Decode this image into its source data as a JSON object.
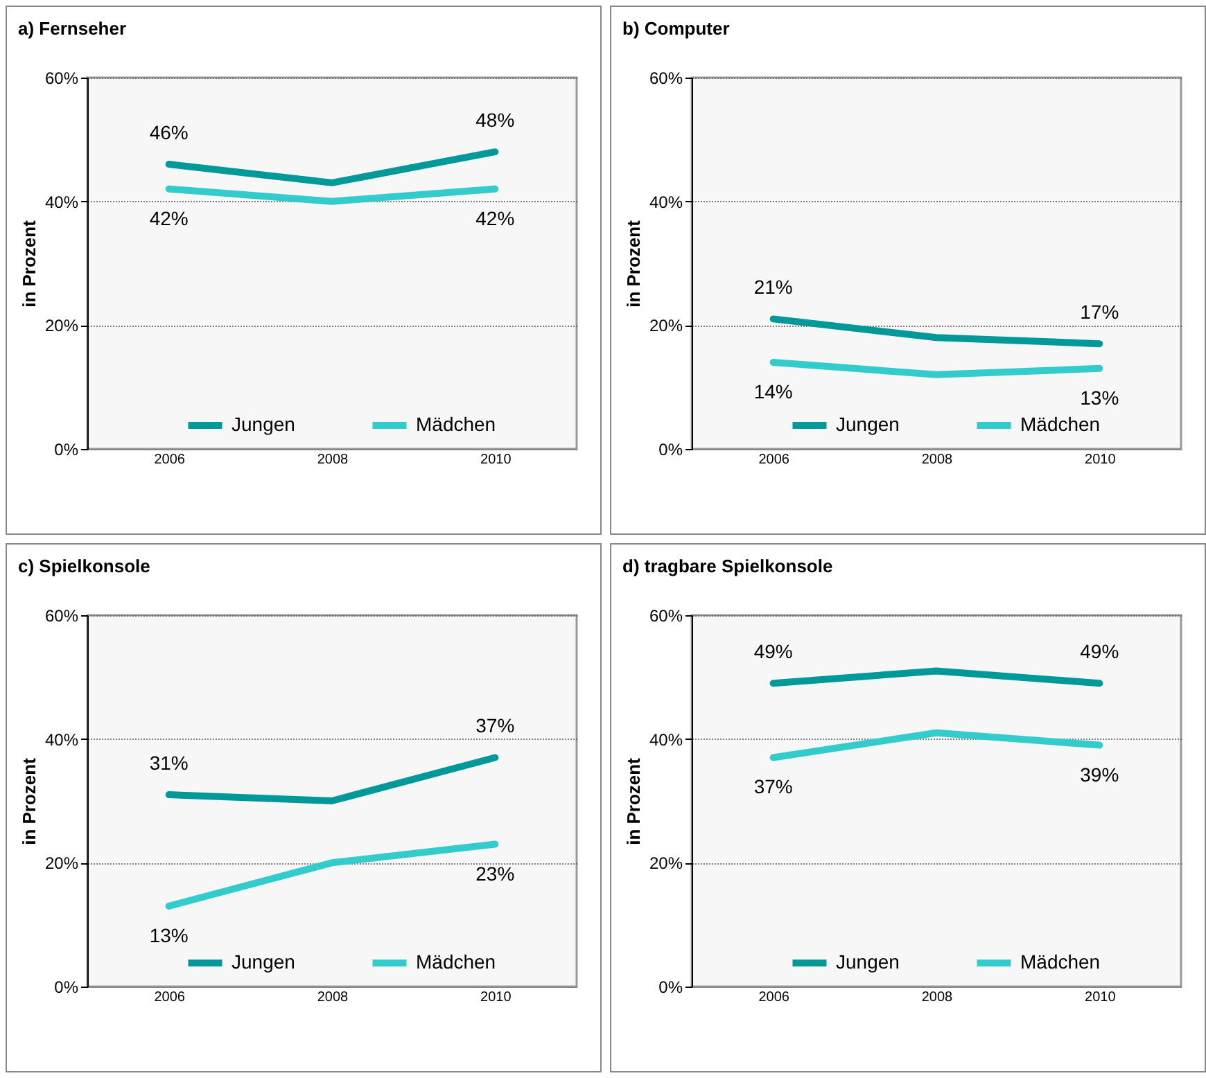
{
  "chart_data": [
    {
      "type": "line",
      "title": "a) Fernseher",
      "ylabel": "in Prozent",
      "categories": [
        "2006",
        "2008",
        "2010"
      ],
      "series": [
        {
          "name": "Jungen",
          "color": "#009999",
          "values": [
            46,
            43,
            48
          ],
          "value_labels": [
            "46%",
            null,
            "48%"
          ]
        },
        {
          "name": "Mädchen",
          "color": "#33cccc",
          "values": [
            42,
            40,
            42
          ],
          "value_labels": [
            "42%",
            null,
            "42%"
          ]
        }
      ],
      "ylim": [
        0,
        60
      ],
      "yticks": [
        {
          "value": 0,
          "label": "0%"
        },
        {
          "value": 20,
          "label": "20%"
        },
        {
          "value": 40,
          "label": "40%"
        },
        {
          "value": 60,
          "label": "60%"
        }
      ],
      "grid": "y",
      "legend": "bottom"
    },
    {
      "type": "line",
      "title": "b) Computer",
      "ylabel": "in Prozent",
      "categories": [
        "2006",
        "2008",
        "2010"
      ],
      "series": [
        {
          "name": "Jungen",
          "color": "#009999",
          "values": [
            21,
            18,
            17
          ],
          "value_labels": [
            "21%",
            null,
            "17%"
          ]
        },
        {
          "name": "Mädchen",
          "color": "#33cccc",
          "values": [
            14,
            12,
            13
          ],
          "value_labels": [
            "14%",
            null,
            "13%"
          ]
        }
      ],
      "ylim": [
        0,
        60
      ],
      "yticks": [
        {
          "value": 0,
          "label": "0%"
        },
        {
          "value": 20,
          "label": "20%"
        },
        {
          "value": 40,
          "label": "40%"
        },
        {
          "value": 60,
          "label": "60%"
        }
      ],
      "grid": "y",
      "legend": "bottom"
    },
    {
      "type": "line",
      "title": "c) Spielkonsole",
      "ylabel": "in Prozent",
      "categories": [
        "2006",
        "2008",
        "2010"
      ],
      "series": [
        {
          "name": "Jungen",
          "color": "#009999",
          "values": [
            31,
            30,
            37
          ],
          "value_labels": [
            "31%",
            null,
            "37%"
          ]
        },
        {
          "name": "Mädchen",
          "color": "#33cccc",
          "values": [
            13,
            20,
            23
          ],
          "value_labels": [
            "13%",
            null,
            "23%"
          ]
        }
      ],
      "ylim": [
        0,
        60
      ],
      "yticks": [
        {
          "value": 0,
          "label": "0%"
        },
        {
          "value": 20,
          "label": "20%"
        },
        {
          "value": 40,
          "label": "40%"
        },
        {
          "value": 60,
          "label": "60%"
        }
      ],
      "grid": "y",
      "legend": "bottom"
    },
    {
      "type": "line",
      "title": "d) tragbare Spielkonsole",
      "ylabel": "in Prozent",
      "categories": [
        "2006",
        "2008",
        "2010"
      ],
      "series": [
        {
          "name": "Jungen",
          "color": "#009999",
          "values": [
            49,
            51,
            49
          ],
          "value_labels": [
            "49%",
            null,
            "49%"
          ]
        },
        {
          "name": "Mädchen",
          "color": "#33cccc",
          "values": [
            37,
            41,
            39
          ],
          "value_labels": [
            "37%",
            null,
            "39%"
          ]
        }
      ],
      "ylim": [
        0,
        60
      ],
      "yticks": [
        {
          "value": 0,
          "label": "0%"
        },
        {
          "value": 20,
          "label": "20%"
        },
        {
          "value": 40,
          "label": "40%"
        },
        {
          "value": 60,
          "label": "60%"
        }
      ],
      "grid": "y",
      "legend": "bottom"
    }
  ]
}
